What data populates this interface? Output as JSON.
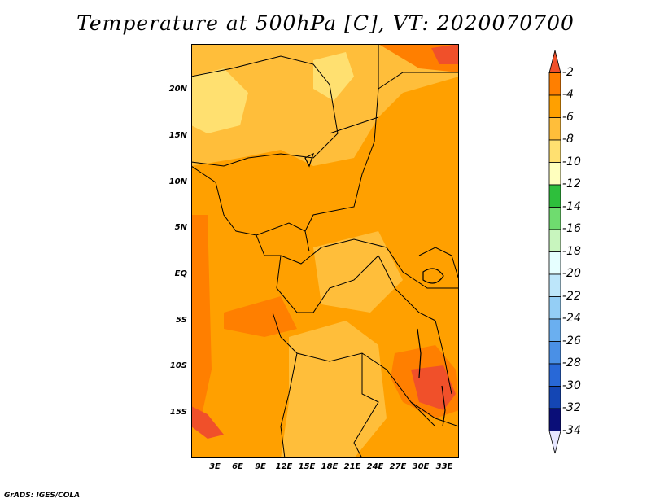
{
  "title": "Temperature at 500hPa [C], VT: 2020070700",
  "footer": "GrADS: IGES/COLA",
  "lat_labels": [
    "20N",
    "15N",
    "10N",
    "5N",
    "EQ",
    "5S",
    "10S",
    "15S"
  ],
  "lon_labels": [
    "3E",
    "6E",
    "9E",
    "12E",
    "15E",
    "18E",
    "21E",
    "24E",
    "27E",
    "30E",
    "33E"
  ],
  "colorbar": {
    "labels": [
      "-2",
      "-4",
      "-6",
      "-8",
      "-10",
      "-12",
      "-14",
      "-16",
      "-18",
      "-20",
      "-22",
      "-24",
      "-26",
      "-28",
      "-30",
      "-32",
      "-34"
    ],
    "colors": [
      "#f0502a",
      "#ff7f00",
      "#ffa000",
      "#ffbe3a",
      "#ffe070",
      "#ffffbe",
      "#2ebf3c",
      "#6fdc6f",
      "#c8f5be",
      "#e6ffff",
      "#bde6fa",
      "#94cef5",
      "#6aaff0",
      "#4a90e6",
      "#2868d7",
      "#1446b4",
      "#0a0e78",
      "#e6e6ff"
    ]
  },
  "map_colors": {
    "light": "#ffe070",
    "pale": "#ffbe3a",
    "mid": "#ffa000",
    "dark": "#ff7f00",
    "hot": "#f0502a"
  }
}
